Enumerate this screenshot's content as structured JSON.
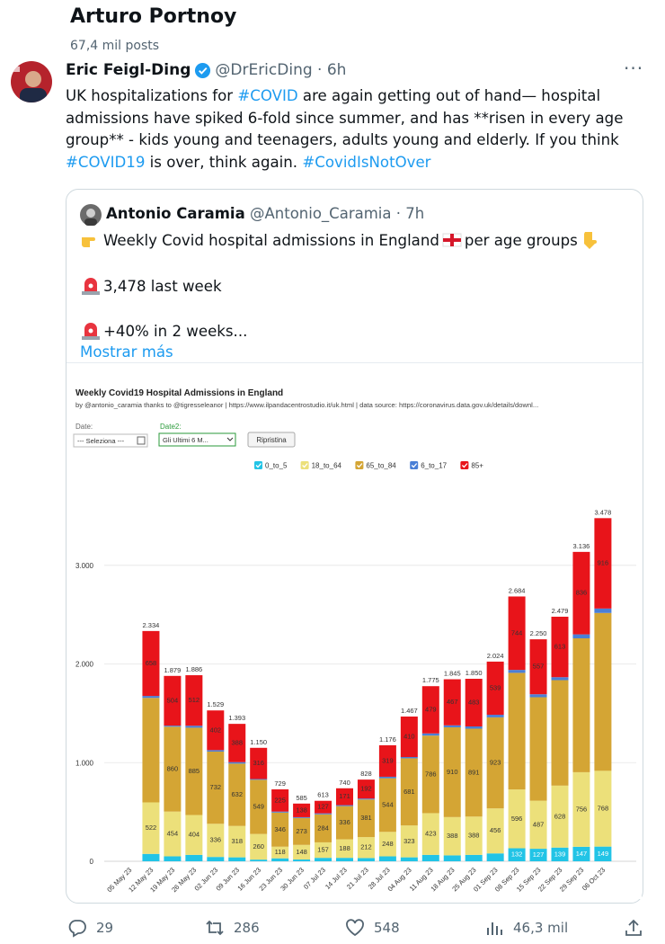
{
  "header": {
    "name": "Arturo Portnoy",
    "posts": "67,4 mil posts"
  },
  "tweet": {
    "author": "Eric Feigl-Ding",
    "handle": "@DrEricDing · 6h",
    "text": [
      "UK hospitalizations for ",
      "#COVID",
      " are again getting out of hand— hospital admissions have spiked 6-fold since summer, and has **risen in every age group** - kids young and teenagers, adults young and elderly. If you think ",
      "#COVID19",
      " is over, think again. ",
      "#CovidIsNotOver"
    ]
  },
  "quote": {
    "author": "Antonio Caramia",
    "handle": "@Antonio_Caramia · 7h",
    "line1a": "Weekly Covid hospital admissions in England",
    "line1b": "per age groups",
    "line2": "3,478 last week",
    "line3": "+40% in 2 weeks...",
    "more": "Mostrar más"
  },
  "chart_data": {
    "type": "stacked_bar",
    "title": "Weekly Covid19 Hospital Admissions in England",
    "subtitle": "by @antonio_caramia thanks to @tigresseleanor | https://www.ilpandacentrostudio.it/uk.html | data source: https://coronavirus.data.gov.uk/details/downl...",
    "controls": {
      "date_label": "Date:",
      "date_value": "--- Seleziona ---",
      "date2_label": "Date2:",
      "date2_value": "Gli Ultimi 6 M...",
      "reset": "Ripristina"
    },
    "categories": [
      "05 May 23",
      "12 May 23",
      "19 May 23",
      "26 May 23",
      "02 Jun 23",
      "09 Jun 23",
      "16 Jun 23",
      "23 Jun 23",
      "30 Jun 23",
      "07 Jul 23",
      "14 Jul 23",
      "21 Jul 23",
      "28 Jul 23",
      "04 Aug 23",
      "11 Aug 23",
      "18 Aug 23",
      "25 Aug 23",
      "01 Sep 23",
      "08 Sep 23",
      "15 Sep 23",
      "22 Sep 23",
      "29 Sep 23",
      "06 Oct 23"
    ],
    "series": [
      {
        "name": "0_to_5",
        "color": "#22c4e6",
        "label_color": "#ffffff",
        "values": [
          null,
          75,
          50,
          65,
          44,
          40,
          17,
          30,
          18,
          35,
          35,
          33,
          50,
          40,
          65,
          60,
          65,
          80,
          132,
          127,
          139,
          147,
          149
        ],
        "value_labels": [
          null,
          null,
          null,
          null,
          null,
          null,
          null,
          null,
          null,
          null,
          null,
          null,
          null,
          null,
          null,
          null,
          null,
          null,
          "132",
          "127",
          "139",
          "147",
          "149"
        ]
      },
      {
        "name": "18_to_64",
        "color": "#ece07a",
        "label_color": "#333333",
        "values": [
          null,
          522,
          454,
          404,
          336,
          318,
          260,
          118,
          148,
          157,
          188,
          212,
          248,
          323,
          423,
          388,
          388,
          456,
          596,
          487,
          628,
          756,
          768
        ],
        "value_labels": [
          null,
          "522",
          "454",
          "404",
          "336",
          "318",
          "260",
          "118",
          "148",
          "157",
          "188",
          "212",
          "248",
          "323",
          "423",
          "388",
          "388",
          "456",
          "596",
          "487",
          "628",
          "756",
          "768"
        ]
      },
      {
        "name": "65_to_84",
        "color": "#d4a534",
        "label_color": "#333333",
        "values": [
          null,
          1059,
          860,
          885,
          732,
          632,
          549,
          346,
          273,
          284,
          336,
          381,
          544,
          681,
          786,
          910,
          891,
          923,
          1182,
          1049,
          1069,
          1357,
          1600
        ],
        "value_labels": [
          null,
          null,
          "860",
          "885",
          "732",
          "632",
          "549",
          "346",
          "273",
          "284",
          "336",
          "381",
          "544",
          "681",
          "786",
          "910",
          "891",
          "923",
          null,
          null,
          null,
          null,
          null
        ]
      },
      {
        "name": "6_to_17",
        "color": "#4a7fd6",
        "label_color": "#ffffff",
        "values": [
          null,
          20,
          11,
          20,
          15,
          15,
          8,
          10,
          8,
          10,
          10,
          10,
          15,
          13,
          22,
          20,
          23,
          26,
          30,
          30,
          30,
          40,
          45
        ]
      },
      {
        "name": "85+",
        "color": "#e8141a",
        "label_color": "#333333",
        "values": [
          null,
          658,
          504,
          512,
          402,
          388,
          316,
          225,
          138,
          127,
          171,
          192,
          319,
          410,
          479,
          467,
          483,
          539,
          744,
          557,
          613,
          836,
          916
        ],
        "value_labels": [
          null,
          "658",
          "504",
          "512",
          "402",
          "388",
          "316",
          "225",
          "138",
          "127",
          "171",
          "192",
          "319",
          "410",
          "479",
          "467",
          "483",
          "539",
          "744",
          "557",
          "613",
          "836",
          "916"
        ]
      }
    ],
    "totals": {
      "values": [
        null,
        2334,
        1879,
        1886,
        1529,
        1393,
        1150,
        729,
        585,
        613,
        740,
        828,
        1176,
        1467,
        1775,
        1845,
        1850,
        2024,
        2684,
        2250,
        2479,
        3136,
        3478
      ],
      "value_labels": [
        null,
        "2.334",
        "1.879",
        "1.886",
        "1.529",
        "1.393",
        "1.150",
        "729",
        "585",
        "613",
        "740",
        "828",
        "1.176",
        "1.467",
        "1.775",
        "1.845",
        "1.850",
        "2.024",
        "2.684",
        "2.250",
        "2.479",
        "3.136",
        "3.478"
      ]
    },
    "ylim": [
      0,
      3800
    ],
    "yticks": [
      0,
      {
        "value": 1000,
        "label": "1.000"
      },
      {
        "value": 2000,
        "label": "2.000"
      },
      {
        "value": 3000,
        "label": "3.000"
      }
    ],
    "grid": true
  },
  "stats": {
    "replies": "29",
    "reposts": "286",
    "likes": "548",
    "views": "46,3 mil"
  }
}
